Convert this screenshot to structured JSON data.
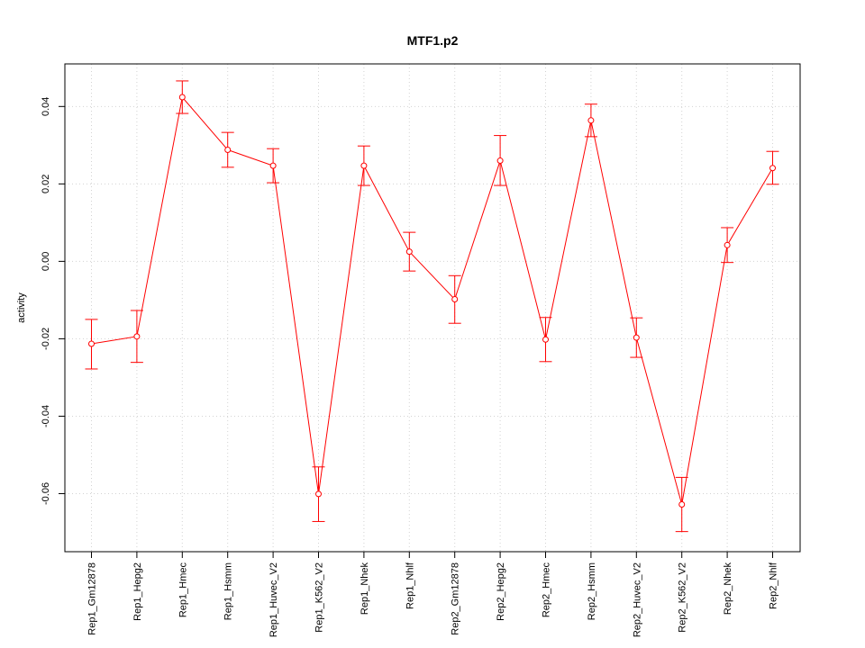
{
  "chart_data": {
    "type": "line",
    "title": "MTF1.p2",
    "xlabel": "",
    "ylabel": "activity",
    "ylim": [
      -0.075,
      0.051
    ],
    "yticks": [
      -0.06,
      -0.04,
      -0.02,
      0.0,
      0.02,
      0.04
    ],
    "ytick_labels": [
      "-0.06",
      "-0.04",
      "-0.02",
      "0.00",
      "0.02",
      "0.04"
    ],
    "grid": true,
    "color": "#ff0000",
    "categories": [
      "Rep1_Gm12878",
      "Rep1_Hepg2",
      "Rep1_Hmec",
      "Rep1_Hsmm",
      "Rep1_Huvec_V2",
      "Rep1_K562_V2",
      "Rep1_Nhek",
      "Rep1_Nhlf",
      "Rep2_Gm12878",
      "Rep2_Hepg2",
      "Rep2_Hmec",
      "Rep2_Hsmm",
      "Rep2_Huvec_V2",
      "Rep2_K562_V2",
      "Rep2_Nhek",
      "Rep2_Nhlf"
    ],
    "values": [
      -0.0213,
      -0.0194,
      0.0424,
      0.0288,
      0.0247,
      -0.0601,
      0.0247,
      0.0025,
      -0.0098,
      0.026,
      -0.0202,
      0.0364,
      -0.0197,
      -0.0628,
      0.0042,
      0.0241
    ],
    "err_upper": [
      -0.015,
      -0.0127,
      0.0466,
      0.0333,
      0.0291,
      -0.0531,
      0.0298,
      0.0075,
      -0.0037,
      0.0325,
      -0.0145,
      0.0406,
      -0.0146,
      -0.0558,
      0.0087,
      0.0284
    ],
    "err_lower": [
      -0.0278,
      -0.0261,
      0.0382,
      0.0243,
      0.0203,
      -0.0672,
      0.0196,
      -0.0025,
      -0.016,
      0.0196,
      -0.0259,
      0.0322,
      -0.0248,
      -0.0698,
      -0.0003,
      0.0199
    ]
  }
}
